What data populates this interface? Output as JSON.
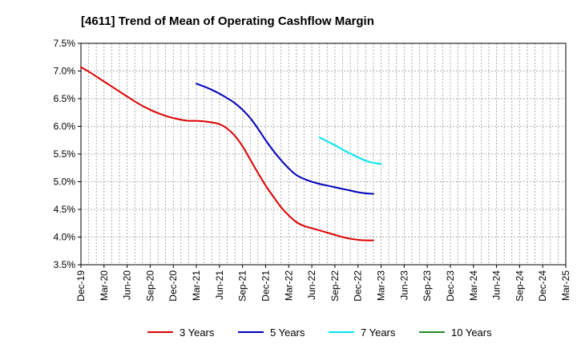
{
  "chart_data": {
    "type": "line",
    "title": "[4611]  Trend of Mean of Operating Cashflow Margin",
    "xlabel": "",
    "ylabel": "",
    "ylim": [
      3.5,
      7.5
    ],
    "grid": true,
    "legend_position": "bottom",
    "x_tick_labels": [
      "Dec-19",
      "Mar-20",
      "Jun-20",
      "Sep-20",
      "Dec-20",
      "Mar-21",
      "Jun-21",
      "Sep-21",
      "Dec-21",
      "Mar-22",
      "Jun-22",
      "Sep-22",
      "Dec-22",
      "Mar-23",
      "Jun-23",
      "Sep-23",
      "Dec-23",
      "Mar-24",
      "Jun-24",
      "Sep-24",
      "Dec-24",
      "Mar-25"
    ],
    "y_ticks": [
      {
        "value": 3.5,
        "label": "3.5%"
      },
      {
        "value": 4.0,
        "label": "4.0%"
      },
      {
        "value": 4.5,
        "label": "4.5%"
      },
      {
        "value": 5.0,
        "label": "5.0%"
      },
      {
        "value": 5.5,
        "label": "5.5%"
      },
      {
        "value": 6.0,
        "label": "6.0%"
      },
      {
        "value": 6.5,
        "label": "6.5%"
      },
      {
        "value": 7.0,
        "label": "7.0%"
      },
      {
        "value": 7.5,
        "label": "7.5%"
      }
    ],
    "series": [
      {
        "name": "3 Years",
        "color": "#dd0000",
        "start_index": 0,
        "values": [
          7.07,
          6.99,
          6.9,
          6.81,
          6.72,
          6.63,
          6.54,
          6.45,
          6.37,
          6.3,
          6.24,
          6.19,
          6.15,
          6.12,
          6.1,
          6.1,
          6.09,
          6.07,
          6.04,
          5.96,
          5.83,
          5.64,
          5.4,
          5.16,
          4.93,
          4.73,
          4.54,
          4.39,
          4.27,
          4.2,
          4.16,
          4.12,
          4.08,
          4.04,
          4.0,
          3.97,
          3.95,
          3.94,
          3.94
        ]
      },
      {
        "name": "5 Years",
        "color": "#0000bb",
        "start_index": 15,
        "values": [
          6.77,
          6.72,
          6.66,
          6.59,
          6.51,
          6.42,
          6.3,
          6.15,
          5.96,
          5.75,
          5.56,
          5.39,
          5.24,
          5.12,
          5.05,
          5.0,
          4.96,
          4.93,
          4.9,
          4.87,
          4.84,
          4.81,
          4.79,
          4.78
        ]
      },
      {
        "name": "7 Years",
        "color": "#00e5ee",
        "start_index": 31,
        "values": [
          5.8,
          5.73,
          5.66,
          5.58,
          5.51,
          5.44,
          5.38,
          5.34,
          5.32
        ]
      },
      {
        "name": "10 Years",
        "color": "#228b22",
        "start_index": 0,
        "values": []
      }
    ]
  }
}
